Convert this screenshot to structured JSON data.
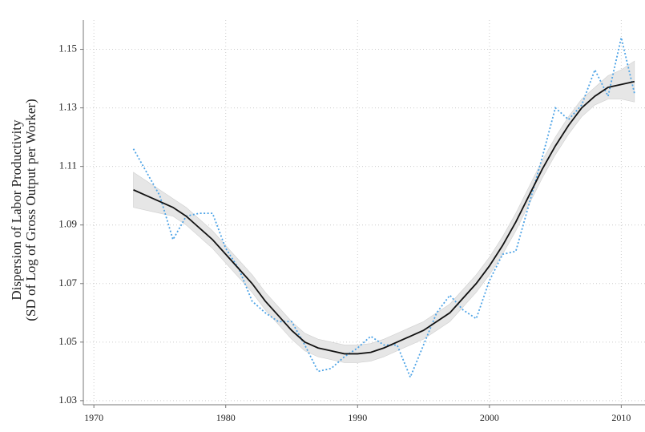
{
  "chart_data": {
    "type": "line",
    "y_label": [
      "Dispersion of Labor Productivity",
      "(SD of Log of Gross Output per Worker)"
    ],
    "x": [
      1973,
      1974,
      1975,
      1976,
      1977,
      1978,
      1979,
      1980,
      1981,
      1982,
      1983,
      1984,
      1985,
      1986,
      1987,
      1988,
      1989,
      1990,
      1991,
      1992,
      1993,
      1994,
      1995,
      1996,
      1997,
      1998,
      1999,
      2000,
      2001,
      2002,
      2003,
      2004,
      2005,
      2006,
      2007,
      2008,
      2009,
      2010,
      2011
    ],
    "band": {
      "color": "#e6e6e6",
      "upper": [
        1.108,
        1.105,
        1.102,
        1.099,
        1.096,
        1.092,
        1.088,
        1.083,
        1.078,
        1.073,
        1.067,
        1.062,
        1.057,
        1.053,
        1.051,
        1.05,
        1.049,
        1.049,
        1.0495,
        1.051,
        1.053,
        1.055,
        1.057,
        1.06,
        1.063,
        1.068,
        1.073,
        1.079,
        1.086,
        1.094,
        1.103,
        1.112,
        1.12,
        1.127,
        1.133,
        1.137,
        1.141,
        1.143,
        1.146
      ],
      "lower": [
        1.096,
        1.095,
        1.094,
        1.093,
        1.09,
        1.086,
        1.082,
        1.077,
        1.072,
        1.067,
        1.061,
        1.056,
        1.051,
        1.047,
        1.045,
        1.044,
        1.043,
        1.043,
        1.0435,
        1.045,
        1.047,
        1.049,
        1.051,
        1.054,
        1.057,
        1.062,
        1.067,
        1.073,
        1.08,
        1.088,
        1.097,
        1.106,
        1.114,
        1.121,
        1.127,
        1.131,
        1.133,
        1.133,
        1.132
      ]
    },
    "series": [
      {
        "color": "#4da3e6",
        "style": "dotted",
        "values": [
          1.116,
          1.108,
          1.1,
          1.085,
          1.093,
          1.094,
          1.094,
          1.082,
          1.075,
          1.064,
          1.06,
          1.057,
          1.057,
          1.049,
          1.04,
          1.041,
          1.045,
          1.048,
          1.052,
          1.049,
          1.049,
          1.038,
          1.049,
          1.06,
          1.066,
          1.061,
          1.058,
          1.071,
          1.08,
          1.081,
          1.097,
          1.113,
          1.13,
          1.126,
          1.131,
          1.143,
          1.134,
          1.154,
          1.135
        ]
      },
      {
        "color": "#111111",
        "style": "solid",
        "values": [
          1.102,
          1.1,
          1.098,
          1.096,
          1.093,
          1.089,
          1.085,
          1.08,
          1.075,
          1.07,
          1.064,
          1.059,
          1.054,
          1.05,
          1.048,
          1.047,
          1.046,
          1.046,
          1.0465,
          1.048,
          1.05,
          1.052,
          1.054,
          1.057,
          1.06,
          1.065,
          1.07,
          1.076,
          1.083,
          1.091,
          1.1,
          1.109,
          1.117,
          1.124,
          1.13,
          1.134,
          1.137,
          1.138,
          1.139
        ]
      }
    ],
    "xlim": [
      1969.2,
      2011.8
    ],
    "ylim": [
      1.0286,
      1.16
    ],
    "xticks": [
      1970,
      1980,
      1990,
      2000,
      2010
    ],
    "yticks": [
      1.03,
      1.05,
      1.07,
      1.09,
      1.11,
      1.13,
      1.15
    ],
    "grid": true
  }
}
